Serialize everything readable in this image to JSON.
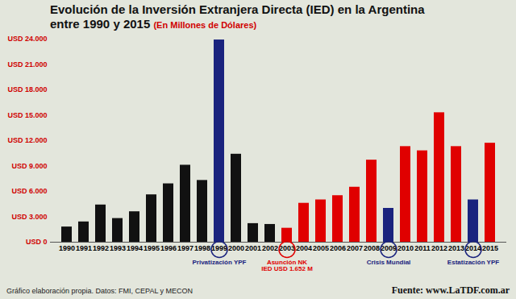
{
  "chart_data": {
    "type": "bar",
    "title": "Evolución de la Inversión Extranjera Directa (IED) en la Argentina",
    "subtitle": "entre 1990 y 2015",
    "ylabel": "(En Millones de Dólares)",
    "categories": [
      "1990",
      "1991",
      "1992",
      "1993",
      "1994",
      "1995",
      "1996",
      "1997",
      "1998",
      "1999",
      "2000",
      "2001",
      "2002",
      "2003",
      "2004",
      "2005",
      "2006",
      "2007",
      "2008",
      "2009",
      "2010",
      "2011",
      "2012",
      "2013",
      "2014",
      "2015"
    ],
    "values": [
      1800,
      2400,
      4400,
      2800,
      3600,
      5600,
      6900,
      9100,
      7300,
      23900,
      10400,
      2200,
      2100,
      1652,
      4600,
      5000,
      5500,
      6500,
      9700,
      4000,
      11300,
      10800,
      15300,
      11300,
      5000,
      11700
    ],
    "colors": [
      "#111111",
      "#111111",
      "#111111",
      "#111111",
      "#111111",
      "#111111",
      "#111111",
      "#111111",
      "#111111",
      "#1a237e",
      "#111111",
      "#111111",
      "#111111",
      "#e00000",
      "#e00000",
      "#e00000",
      "#e00000",
      "#e00000",
      "#e00000",
      "#1a237e",
      "#e00000",
      "#e00000",
      "#e00000",
      "#e00000",
      "#1a237e",
      "#e00000"
    ],
    "ylim": [
      0,
      24000
    ],
    "yticks": [
      {
        "value": 0,
        "label": "USD 0"
      },
      {
        "value": 3000,
        "label": "USD 3.000"
      },
      {
        "value": 6000,
        "label": "USD 6.000"
      },
      {
        "value": 9000,
        "label": "USD 9.000"
      },
      {
        "value": 12000,
        "label": "USD 12.000"
      },
      {
        "value": 15000,
        "label": "USD 15.000"
      },
      {
        "value": 18000,
        "label": "USD 18.000"
      },
      {
        "value": 21000,
        "label": "USD 21.000"
      },
      {
        "value": 24000,
        "label": "USD 24.000"
      }
    ],
    "grid": false,
    "annotations": [
      {
        "category": "1999",
        "text": [
          "Privatización YPF"
        ]
      },
      {
        "category": "2003",
        "text": [
          "Asunción NK",
          "IED USD 1.652 M"
        ]
      },
      {
        "category": "2009",
        "text": [
          "Crisis Mundial"
        ]
      },
      {
        "category": "2014",
        "text": [
          "Estatización YPF"
        ]
      }
    ],
    "note": "Gráfico elaboración propia. Datos: FMI, CEPAL y MECON",
    "source": "Fuente: www.LaTDF.com.ar"
  }
}
